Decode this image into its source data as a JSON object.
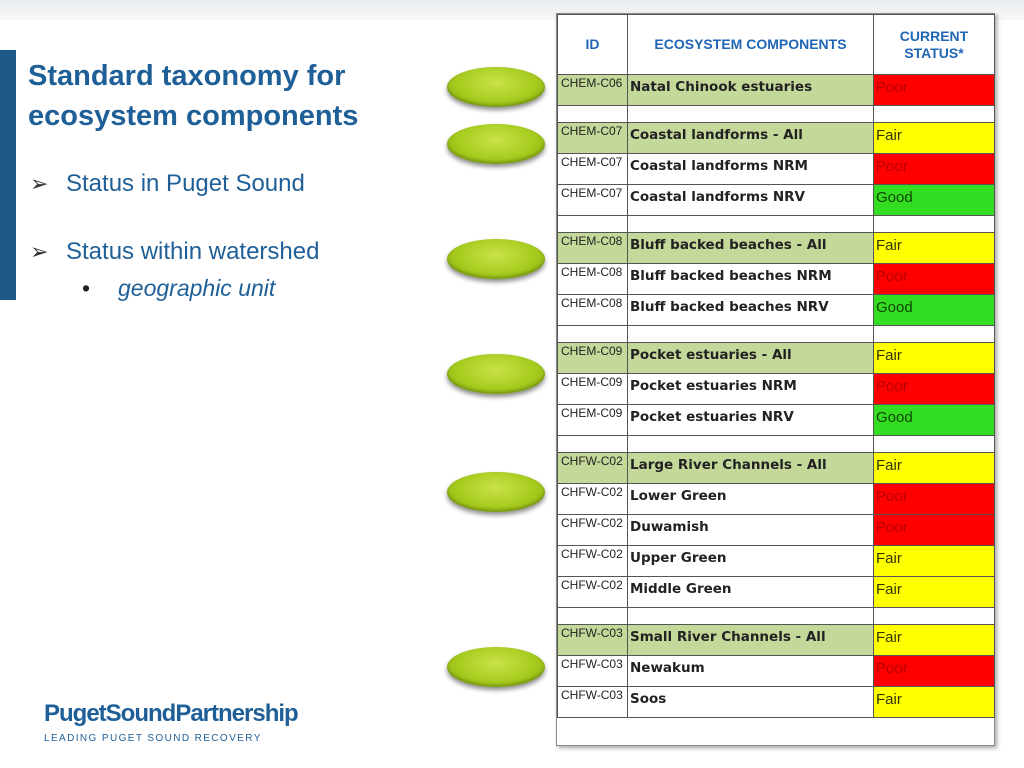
{
  "slide": {
    "title": "Standard taxonomy for ecosystem components",
    "bullets": [
      "Status in Puget Sound",
      "Status within watershed"
    ],
    "bullet_marker": "➢",
    "sub_bullet_marker": "•",
    "sub_bullet": "geographic unit"
  },
  "colors": {
    "title": "#1f5f97",
    "header_text": "#1f66b5",
    "highlight_row": "#c4d89a",
    "Poor": "#ff0000",
    "Fair": "#ffff00",
    "Good": "#33dd22",
    "poor_text": "#b80000",
    "fair_text": "#333300",
    "good_text": "#114400"
  },
  "table": {
    "headers": [
      "ID",
      "ECOSYSTEM COMPONENTS",
      "CURRENT STATUS*"
    ],
    "rows": [
      {
        "id": "CHEM-C06",
        "name": "Natal Chinook estuaries",
        "status": "Poor",
        "highlight": true
      },
      {
        "blank": true
      },
      {
        "id": "CHEM-C07",
        "name": "Coastal landforms - All",
        "status": "Fair",
        "highlight": true
      },
      {
        "id": "CHEM-C07",
        "name": "Coastal landforms NRM",
        "status": "Poor"
      },
      {
        "id": "CHEM-C07",
        "name": "Coastal landforms NRV",
        "status": "Good"
      },
      {
        "blank": true
      },
      {
        "id": "CHEM-C08",
        "name": "Bluff backed beaches - All",
        "status": "Fair",
        "highlight": true
      },
      {
        "id": "CHEM-C08",
        "name": "Bluff backed beaches NRM",
        "status": "Poor"
      },
      {
        "id": "CHEM-C08",
        "name": "Bluff backed beaches NRV",
        "status": "Good"
      },
      {
        "blank": true
      },
      {
        "id": "CHEM-C09",
        "name": "Pocket estuaries - All",
        "status": "Fair",
        "highlight": true
      },
      {
        "id": "CHEM-C09",
        "name": "Pocket estuaries NRM",
        "status": "Poor"
      },
      {
        "id": "CHEM-C09",
        "name": "Pocket estuaries NRV",
        "status": "Good"
      },
      {
        "blank": true
      },
      {
        "id": "CHFW-C02",
        "name": "Large River Channels - All",
        "status": "Fair",
        "highlight": true
      },
      {
        "id": "CHFW-C02",
        "name": "Lower Green",
        "status": "Poor"
      },
      {
        "id": "CHFW-C02",
        "name": "Duwamish",
        "status": "Poor"
      },
      {
        "id": "CHFW-C02",
        "name": "Upper Green",
        "status": "Fair"
      },
      {
        "id": "CHFW-C02",
        "name": "Middle Green",
        "status": "Fair"
      },
      {
        "blank": true
      },
      {
        "id": "CHFW-C03",
        "name": "Small River Channels - All",
        "status": "Fair",
        "highlight": true
      },
      {
        "id": "CHFW-C03",
        "name": "Newakum",
        "status": "Poor"
      },
      {
        "id": "CHFW-C03",
        "name": "Soos",
        "status": "Fair"
      }
    ]
  },
  "oval_count": 6,
  "footer": {
    "logo": "PugetSoundPartnership",
    "tagline": "LEADING PUGET SOUND RECOVERY"
  }
}
